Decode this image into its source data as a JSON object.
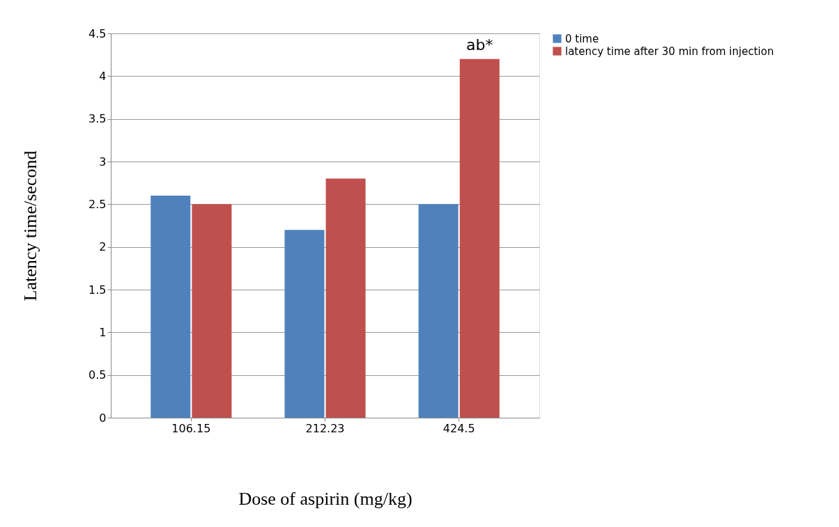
{
  "chart_data": {
    "type": "bar",
    "xlabel": "Dose of aspirin (mg/kg)",
    "ylabel": "Latency time/second",
    "categories": [
      "106.15",
      "212.23",
      "424.5"
    ],
    "series": [
      {
        "name": "0 time",
        "color": "#4f81bd",
        "values": [
          2.6,
          2.2,
          2.5
        ]
      },
      {
        "name": "latency time after 30 min from injection",
        "color": "#c0504d",
        "values": [
          2.5,
          2.8,
          4.2
        ]
      }
    ],
    "ylim": [
      0,
      4.5
    ],
    "yticks": [
      0,
      0.5,
      1,
      1.5,
      2,
      2.5,
      3,
      3.5,
      4,
      4.5
    ],
    "grid": "y",
    "legend": "right",
    "annotations": [
      {
        "text": "ab*",
        "x": "424.5",
        "y": 4.2
      }
    ]
  }
}
